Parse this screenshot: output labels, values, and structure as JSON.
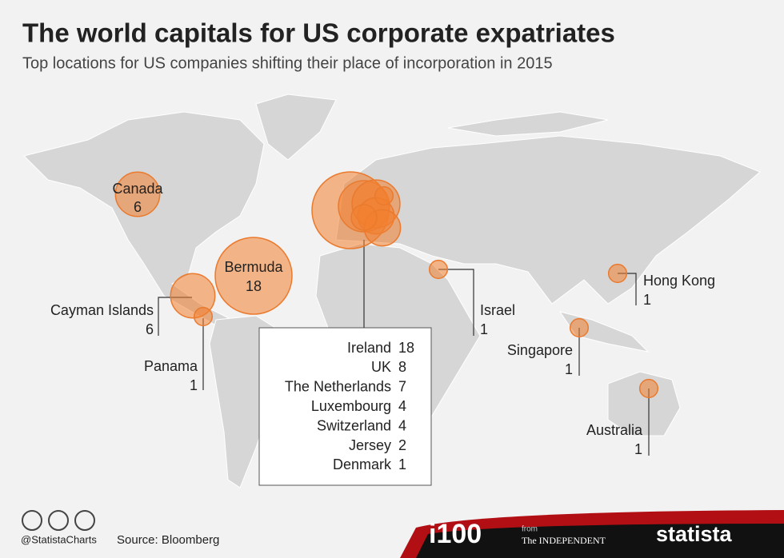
{
  "header": {
    "title": "The world capitals for US corporate expatriates",
    "subtitle": "Top locations for US companies shifting their place of incorporation in 2015"
  },
  "locations": [
    {
      "name": "Canada",
      "value": 6
    },
    {
      "name": "Bermuda",
      "value": 18
    },
    {
      "name": "Cayman Islands",
      "value": 6
    },
    {
      "name": "Panama",
      "value": 1
    },
    {
      "name": "Israel",
      "value": 1
    },
    {
      "name": "Hong Kong",
      "value": 1
    },
    {
      "name": "Singapore",
      "value": 1
    },
    {
      "name": "Australia",
      "value": 1
    }
  ],
  "europe": [
    {
      "name": "Ireland",
      "value": 18
    },
    {
      "name": "UK",
      "value": 8
    },
    {
      "name": "The Netherlands",
      "value": 7
    },
    {
      "name": "Luxembourg",
      "value": 4
    },
    {
      "name": "Switzerland",
      "value": 4
    },
    {
      "name": "Jersey",
      "value": 2
    },
    {
      "name": "Denmark",
      "value": 1
    }
  ],
  "footer": {
    "handle": "@StatistaCharts",
    "source": "Source: Bloomberg",
    "brand": "i100",
    "from": "from",
    "partner": "The INDEPENDENT",
    "logo": "statista"
  }
}
